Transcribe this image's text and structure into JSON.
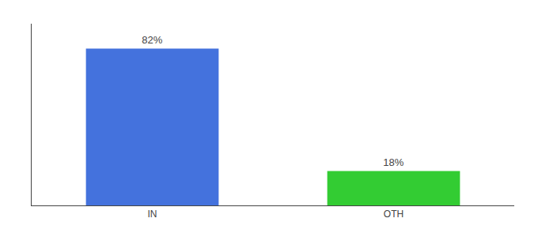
{
  "chart_data": {
    "type": "bar",
    "categories": [
      "IN",
      "OTH"
    ],
    "values": [
      82,
      18
    ],
    "colors": [
      "#4472DD",
      "#33CC33"
    ],
    "value_labels": [
      "82%",
      "18%"
    ],
    "data_labels": true,
    "ylim": [
      0,
      95
    ],
    "yticks": [],
    "tick_labels": "x",
    "grid": false
  }
}
